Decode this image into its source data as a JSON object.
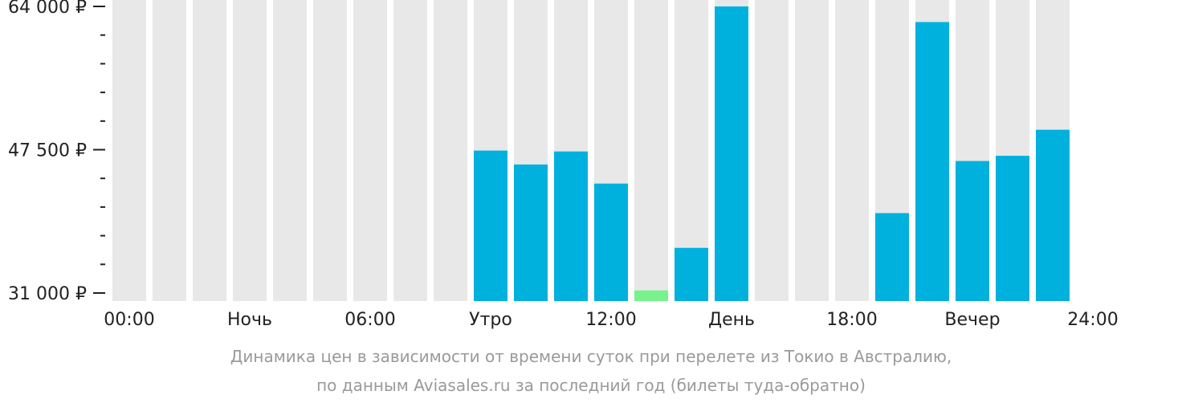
{
  "chart_data": {
    "type": "bar",
    "title": "",
    "ylim": [
      31000,
      64000
    ],
    "y_ticks": [
      {
        "value": 64000,
        "label": "64 000 ₽"
      },
      {
        "value": 47500,
        "label": "47 500 ₽"
      },
      {
        "value": 31000,
        "label": "31 000 ₽"
      }
    ],
    "x_labels": [
      "00:00",
      "Ночь",
      "06:00",
      "Утро",
      "12:00",
      "День",
      "18:00",
      "Вечер",
      "24:00"
    ],
    "slots": 24,
    "values": [
      null,
      null,
      null,
      null,
      null,
      null,
      null,
      null,
      null,
      47400,
      45800,
      47300,
      43600,
      31300,
      36200,
      64000,
      null,
      null,
      null,
      40200,
      62200,
      46200,
      46800,
      49800
    ],
    "min_price_index": 13,
    "colors": {
      "bar": "#00b1dd",
      "min_bar": "#77f28c",
      "background_bar": "#e8e8e8",
      "axis_text": "#222222",
      "caption_text": "#9a9a9a"
    }
  },
  "caption": {
    "line1": "Динамика цен в зависимости от времени суток при перелете из Токио в Австралию,",
    "line2": "по данным Aviasales.ru за последний год (билеты туда-обратно)"
  }
}
